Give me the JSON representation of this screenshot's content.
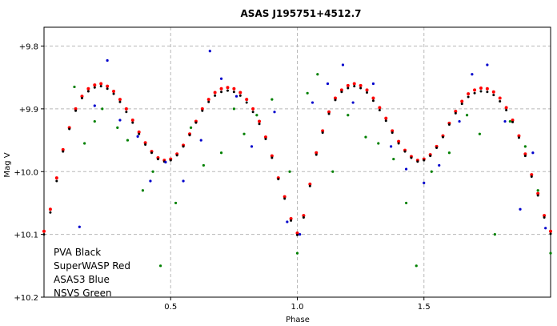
{
  "chart_data": {
    "type": "scatter",
    "title": "ASAS J195751+4512.7",
    "xlabel": "Phase",
    "ylabel": "Mag V",
    "xlim": [
      0.0,
      2.0
    ],
    "ylim": [
      10.2,
      9.77
    ],
    "y_inverted": true,
    "grid": true,
    "x_ticks": [
      {
        "value": 0.5,
        "label": "0.5"
      },
      {
        "value": 1.0,
        "label": "1.0"
      },
      {
        "value": 1.5,
        "label": "1.5"
      }
    ],
    "y_ticks": [
      {
        "value": 9.8,
        "label": "+9.8"
      },
      {
        "value": 9.9,
        "label": "+9.9"
      },
      {
        "value": 10.0,
        "label": "+10.0"
      },
      {
        "value": 10.1,
        "label": "+10.1"
      },
      {
        "value": 10.2,
        "label": "+10.2"
      }
    ],
    "legend_position": "bottom-left",
    "legend": [
      {
        "label": "PVA Black",
        "color": "#000000"
      },
      {
        "label": "SuperWASP Red",
        "color": "#ff0000"
      },
      {
        "label": "ASAS3 Blue",
        "color": "#0000cc"
      },
      {
        "label": "NSVS Green",
        "color": "#008000"
      }
    ],
    "series": [
      {
        "name": "SuperWASP",
        "color": "#ff0000",
        "x": [
          0.0,
          0.025,
          0.05,
          0.075,
          0.1,
          0.125,
          0.15,
          0.175,
          0.2,
          0.225,
          0.25,
          0.275,
          0.3,
          0.325,
          0.35,
          0.375,
          0.4,
          0.425,
          0.45,
          0.475,
          0.5,
          0.525,
          0.55,
          0.575,
          0.6,
          0.625,
          0.65,
          0.675,
          0.7,
          0.725,
          0.75,
          0.775,
          0.8,
          0.825,
          0.85,
          0.875,
          0.9,
          0.925,
          0.95,
          0.975,
          1.0,
          1.025,
          1.05,
          1.075,
          1.1,
          1.125,
          1.15,
          1.175,
          1.2,
          1.225,
          1.25,
          1.275,
          1.3,
          1.325,
          1.35,
          1.375,
          1.4,
          1.425,
          1.45,
          1.475,
          1.5,
          1.525,
          1.55,
          1.575,
          1.6,
          1.625,
          1.65,
          1.675,
          1.7,
          1.725,
          1.75,
          1.775,
          1.8,
          1.825,
          1.85,
          1.875,
          1.9,
          1.925,
          1.95,
          1.975,
          2.0
        ],
        "y": [
          10.095,
          10.06,
          10.01,
          9.965,
          9.93,
          9.9,
          9.88,
          9.868,
          9.862,
          9.86,
          9.864,
          9.872,
          9.885,
          9.9,
          9.918,
          9.937,
          9.954,
          9.968,
          9.978,
          9.982,
          9.98,
          9.972,
          9.958,
          9.94,
          9.92,
          9.9,
          9.885,
          9.874,
          9.868,
          9.866,
          9.868,
          9.874,
          9.885,
          9.9,
          9.92,
          9.945,
          9.975,
          10.01,
          10.04,
          10.075,
          10.098,
          10.07,
          10.02,
          9.97,
          9.935,
          9.905,
          9.883,
          9.87,
          9.863,
          9.86,
          9.863,
          9.87,
          9.883,
          9.898,
          9.915,
          9.935,
          9.952,
          9.966,
          9.976,
          9.982,
          9.98,
          9.973,
          9.96,
          9.943,
          9.923,
          9.904,
          9.888,
          9.876,
          9.87,
          9.867,
          9.868,
          9.873,
          9.883,
          9.898,
          9.918,
          9.943,
          9.972,
          10.005,
          10.035,
          10.07,
          10.095
        ]
      },
      {
        "name": "PVA",
        "color": "#000000",
        "x": [
          0.0,
          0.025,
          0.05,
          0.075,
          0.1,
          0.125,
          0.15,
          0.175,
          0.2,
          0.225,
          0.25,
          0.275,
          0.3,
          0.325,
          0.35,
          0.375,
          0.4,
          0.425,
          0.45,
          0.475,
          0.5,
          0.525,
          0.55,
          0.575,
          0.6,
          0.625,
          0.65,
          0.675,
          0.7,
          0.725,
          0.75,
          0.775,
          0.8,
          0.825,
          0.85,
          0.875,
          0.9,
          0.925,
          0.95,
          0.975,
          1.0,
          1.025,
          1.05,
          1.075,
          1.1,
          1.125,
          1.15,
          1.175,
          1.2,
          1.225,
          1.25,
          1.275,
          1.3,
          1.325,
          1.35,
          1.375,
          1.4,
          1.425,
          1.45,
          1.475,
          1.5,
          1.525,
          1.55,
          1.575,
          1.6,
          1.625,
          1.65,
          1.675,
          1.7,
          1.725,
          1.75,
          1.775,
          1.8,
          1.825,
          1.85,
          1.875,
          1.9,
          1.925,
          1.95,
          1.975,
          2.0
        ],
        "y": [
          10.1,
          10.065,
          10.015,
          9.968,
          9.932,
          9.903,
          9.883,
          9.872,
          9.866,
          9.864,
          9.868,
          9.876,
          9.889,
          9.905,
          9.922,
          9.94,
          9.957,
          9.97,
          9.98,
          9.984,
          9.982,
          9.974,
          9.96,
          9.942,
          9.922,
          9.903,
          9.889,
          9.879,
          9.873,
          9.871,
          9.873,
          9.879,
          9.89,
          9.905,
          9.924,
          9.948,
          9.978,
          10.012,
          10.043,
          10.078,
          10.101,
          10.073,
          10.023,
          9.973,
          9.938,
          9.908,
          9.886,
          9.873,
          9.867,
          9.864,
          9.867,
          9.874,
          9.887,
          9.902,
          9.919,
          9.938,
          9.955,
          9.968,
          9.978,
          9.984,
          9.982,
          9.975,
          9.962,
          9.945,
          9.925,
          9.907,
          9.892,
          9.881,
          9.875,
          9.872,
          9.873,
          9.878,
          9.888,
          9.902,
          9.921,
          9.946,
          9.975,
          10.008,
          10.038,
          10.073,
          10.099
        ]
      },
      {
        "name": "ASAS3",
        "color": "#0000cc",
        "x": [
          0.14,
          0.2,
          0.25,
          0.3,
          0.37,
          0.42,
          0.48,
          0.55,
          0.62,
          0.655,
          0.7,
          0.76,
          0.82,
          0.91,
          0.96,
          1.01,
          1.06,
          1.12,
          1.18,
          1.22,
          1.3,
          1.37,
          1.43,
          1.5,
          1.56,
          1.64,
          1.69,
          1.75,
          1.82,
          1.88,
          1.93,
          1.98
        ],
        "y": [
          10.088,
          9.895,
          9.823,
          9.918,
          9.944,
          10.015,
          9.985,
          10.015,
          9.95,
          9.808,
          9.852,
          9.88,
          9.96,
          9.905,
          10.08,
          10.1,
          9.89,
          9.86,
          9.83,
          9.89,
          9.86,
          9.96,
          9.996,
          10.018,
          9.99,
          9.92,
          9.845,
          9.83,
          9.92,
          10.06,
          9.97,
          10.09
        ]
      },
      {
        "name": "NSVS",
        "color": "#008000",
        "x": [
          0.12,
          0.16,
          0.2,
          0.23,
          0.29,
          0.33,
          0.39,
          0.43,
          0.46,
          0.52,
          0.58,
          0.63,
          0.7,
          0.75,
          0.79,
          0.84,
          0.9,
          0.97,
          1.0,
          1.04,
          1.08,
          1.14,
          1.2,
          1.27,
          1.32,
          1.38,
          1.43,
          1.47,
          1.53,
          1.6,
          1.67,
          1.72,
          1.78,
          1.84,
          1.9,
          1.95,
          2.0
        ],
        "y": [
          9.865,
          9.955,
          9.92,
          9.9,
          9.93,
          9.95,
          10.03,
          10.0,
          10.15,
          10.05,
          9.93,
          9.99,
          9.97,
          9.9,
          9.94,
          9.91,
          9.885,
          10.0,
          10.13,
          9.875,
          9.845,
          10.0,
          9.91,
          9.945,
          9.955,
          9.98,
          10.05,
          10.15,
          10.0,
          9.97,
          9.91,
          9.94,
          10.1,
          9.92,
          9.96,
          10.03,
          10.13
        ]
      }
    ]
  }
}
